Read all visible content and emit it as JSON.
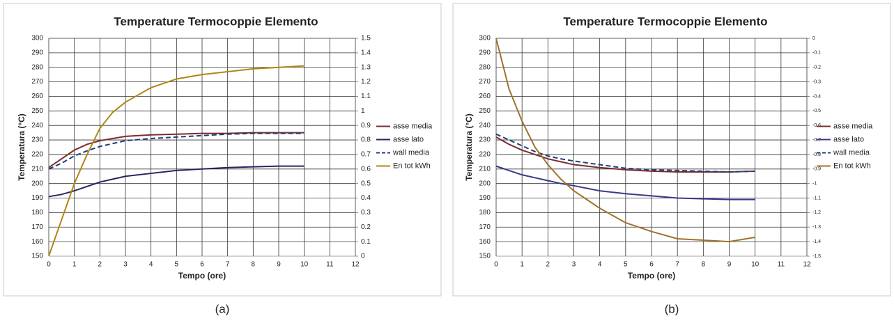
{
  "chart_data": [
    {
      "type": "line",
      "title": "Temperature Termocoppie Elemento",
      "xlabel": "Tempo (ore)",
      "ylabel": "Temperatura (°C)",
      "caption": "(a)",
      "x": [
        0,
        0.5,
        1,
        1.5,
        2,
        2.5,
        3,
        4,
        5,
        6,
        7,
        8,
        9,
        10
      ],
      "xlim": [
        0,
        12
      ],
      "xticks": [
        0,
        1,
        2,
        3,
        4,
        5,
        6,
        7,
        8,
        9,
        10,
        11,
        12
      ],
      "ylim": [
        150,
        300
      ],
      "yticks": [
        150,
        160,
        170,
        180,
        190,
        200,
        210,
        220,
        230,
        240,
        250,
        260,
        270,
        280,
        290,
        300
      ],
      "y2lim": [
        0,
        1.5
      ],
      "y2ticks": [
        0,
        0.1,
        0.2,
        0.3,
        0.4,
        0.5,
        0.6,
        0.7,
        0.8,
        0.9,
        1,
        1.1,
        1.2,
        1.3,
        1.4,
        1.5
      ],
      "grid": true,
      "legend": "right",
      "series": [
        {
          "name": "asse media",
          "color": "#7b2c2c",
          "values": [
            211,
            217,
            223,
            227,
            229.5,
            231,
            232.5,
            233.5,
            234,
            234.5,
            234.5,
            235,
            235,
            235
          ]
        },
        {
          "name": "asse lato",
          "color": "#262660",
          "values": [
            191,
            192.5,
            195,
            198,
            201,
            203,
            205,
            207,
            209,
            210,
            211,
            211.5,
            212,
            212
          ]
        },
        {
          "name": "wall media",
          "color": "#1f3d7a",
          "dash": true,
          "values": [
            210,
            214,
            219,
            222.5,
            225.5,
            227.5,
            229.5,
            231,
            232,
            233,
            234,
            234.5,
            234.5,
            234.5
          ]
        },
        {
          "name": "En tot kWh",
          "color": "#b08614",
          "axis": "y2",
          "values": [
            0,
            0.25,
            0.5,
            0.7,
            0.88,
            0.99,
            1.06,
            1.16,
            1.22,
            1.25,
            1.27,
            1.29,
            1.3,
            1.31
          ]
        }
      ]
    },
    {
      "type": "line",
      "title": "Temperature Termocoppie Elemento",
      "xlabel": "Tempo (ore)",
      "ylabel": "Temperatura (°C)",
      "caption": "(b)",
      "x": [
        0,
        0.5,
        1,
        1.5,
        2,
        2.5,
        3,
        4,
        5,
        6,
        7,
        8,
        9,
        10
      ],
      "xlim": [
        0,
        12
      ],
      "xticks": [
        0,
        1,
        2,
        3,
        4,
        5,
        6,
        7,
        8,
        9,
        10,
        11,
        12
      ],
      "ylim": [
        150,
        300
      ],
      "yticks": [
        150,
        160,
        170,
        180,
        190,
        200,
        210,
        220,
        230,
        240,
        250,
        260,
        270,
        280,
        290,
        300
      ],
      "y2lim": [
        -1.5,
        0
      ],
      "y2ticks": [
        -1.5,
        -1.4,
        -1.3,
        -1.2,
        -1.1,
        -1,
        -0.9,
        -0.8,
        -0.7,
        -0.6,
        -0.5,
        -0.4,
        -0.3,
        -0.2,
        -0.1,
        0
      ],
      "grid": true,
      "legend": "right",
      "series": [
        {
          "name": "asse media",
          "color": "#7b2c2c",
          "values": [
            232,
            227,
            223,
            220,
            217,
            215,
            213,
            211,
            209.5,
            208.5,
            208,
            208,
            208,
            208.5
          ]
        },
        {
          "name": "asse lato",
          "color": "#3a3a8a",
          "values": [
            212,
            209,
            206,
            204,
            202,
            200,
            198.5,
            195,
            193,
            191.5,
            190,
            189.5,
            189,
            189
          ]
        },
        {
          "name": "wall media",
          "color": "#1f3d7a",
          "dash": true,
          "values": [
            234,
            230,
            226,
            222,
            219,
            217,
            215.5,
            213,
            210.5,
            209.5,
            209,
            208.5,
            208,
            208.5
          ]
        },
        {
          "name": "En tot kWh",
          "color": "#a0722a",
          "axis": "y2",
          "values": [
            0,
            -0.35,
            -0.57,
            -0.75,
            -0.87,
            -0.97,
            -1.05,
            -1.17,
            -1.27,
            -1.33,
            -1.38,
            -1.39,
            -1.4,
            -1.37
          ]
        }
      ]
    }
  ]
}
